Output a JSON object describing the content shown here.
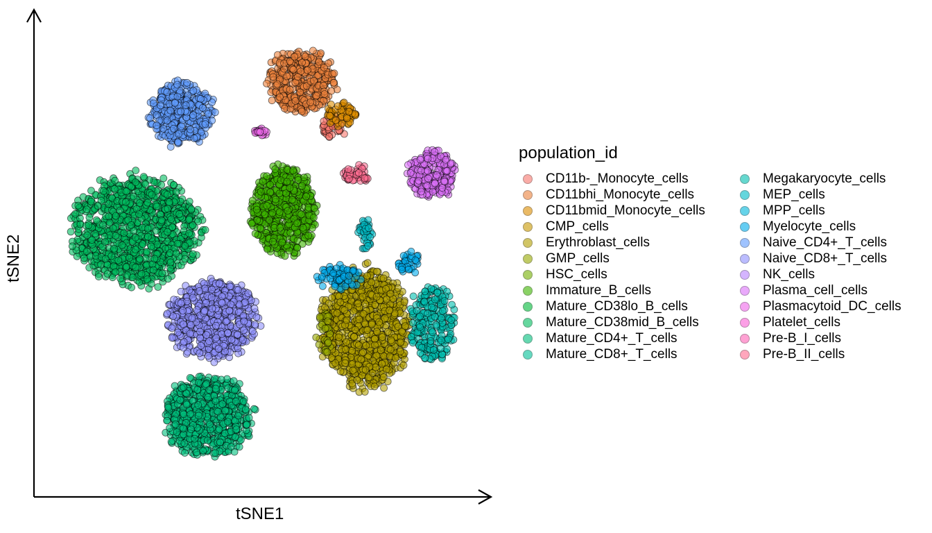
{
  "chart_data": {
    "type": "scatter",
    "xlabel": "tSNE1",
    "ylabel": "tSNE2",
    "xlim": [
      0,
      100
    ],
    "ylim": [
      0,
      100
    ],
    "legend_position": "right",
    "legend_title": "population_id",
    "grid": false,
    "series": [
      {
        "name": "CD11b-_Monocyte_cells",
        "color": "#F8766D"
      },
      {
        "name": "CD11bhi_Monocyte_cells",
        "color": "#EC823C"
      },
      {
        "name": "CD11bmid_Monocyte_cells",
        "color": "#DD8D00"
      },
      {
        "name": "CMP_cells",
        "color": "#C99800"
      },
      {
        "name": "Erythroblast_cells",
        "color": "#B3A000"
      },
      {
        "name": "GMP_cells",
        "color": "#97A900"
      },
      {
        "name": "HSC_cells",
        "color": "#74B000"
      },
      {
        "name": "Immature_B_cells",
        "color": "#3EB500"
      },
      {
        "name": "Mature_CD38lo_B_cells",
        "color": "#00BA38"
      },
      {
        "name": "Mature_CD38mid_B_cells",
        "color": "#00BD5F"
      },
      {
        "name": "Mature_CD4+_T_cells",
        "color": "#00BF7D"
      },
      {
        "name": "Mature_CD8+_T_cells",
        "color": "#00C097"
      },
      {
        "name": "Megakaryocyte_cells",
        "color": "#00BFB0"
      },
      {
        "name": "MEP_cells",
        "color": "#00BCC7"
      },
      {
        "name": "MPP_cells",
        "color": "#00B6DB"
      },
      {
        "name": "Myelocyte_cells",
        "color": "#00ACEC"
      },
      {
        "name": "Naive_CD4+_T_cells",
        "color": "#619CFF"
      },
      {
        "name": "Naive_CD8+_T_cells",
        "color": "#8F91FF"
      },
      {
        "name": "NK_cells",
        "color": "#B983FF"
      },
      {
        "name": "Plasma_cell_cells",
        "color": "#DC71FA"
      },
      {
        "name": "Plasmacytoid_DC_cells",
        "color": "#EF67EB"
      },
      {
        "name": "Platelet_cells",
        "color": "#FB61D7"
      },
      {
        "name": "Pre-B_I_cells",
        "color": "#FF63B6"
      },
      {
        "name": "Pre-B_II_cells",
        "color": "#FF6C91"
      }
    ],
    "clusters": [
      {
        "series": "CD11bhi_Monocyte_cells",
        "cx": 59,
        "cy": 87,
        "rx": 8.5,
        "ry": 7.5,
        "n": 420
      },
      {
        "series": "CD11b-_Monocyte_cells",
        "cx": 66,
        "cy": 77,
        "rx": 3.2,
        "ry": 2.6,
        "n": 40
      },
      {
        "series": "CD11bmid_Monocyte_cells",
        "cx": 68,
        "cy": 80,
        "rx": 4,
        "ry": 3,
        "n": 60
      },
      {
        "series": "Naive_CD4+_T_cells",
        "cx": 32,
        "cy": 80,
        "rx": 8,
        "ry": 7.5,
        "n": 380
      },
      {
        "series": "Mature_CD38mid_B_cells",
        "cx": 22,
        "cy": 55,
        "rx": 16,
        "ry": 13,
        "n": 1100
      },
      {
        "series": "Immature_B_cells",
        "cx": 55,
        "cy": 59,
        "rx": 8,
        "ry": 10.5,
        "n": 600
      },
      {
        "series": "Plasmacytoid_DC_cells",
        "cx": 50,
        "cy": 76,
        "rx": 2,
        "ry": 1,
        "n": 18
      },
      {
        "series": "Pre-B_II_cells",
        "cx": 71,
        "cy": 67,
        "rx": 3.2,
        "ry": 2.2,
        "n": 45
      },
      {
        "series": "Plasma_cell_cells",
        "cx": 88,
        "cy": 67,
        "rx": 6,
        "ry": 5.8,
        "n": 250
      },
      {
        "series": "Naive_CD8+_T_cells",
        "cx": 39,
        "cy": 36,
        "rx": 11,
        "ry": 9.5,
        "n": 700
      },
      {
        "series": "Mature_CD4+_T_cells",
        "cx": 38,
        "cy": 15,
        "rx": 11,
        "ry": 9.5,
        "n": 700
      },
      {
        "series": "Erythroblast_cells",
        "cx": 73,
        "cy": 34,
        "rx": 11,
        "ry": 14.5,
        "n": 1000
      },
      {
        "series": "Myelocyte_cells",
        "cx": 67,
        "cy": 45,
        "rx": 6,
        "ry": 3,
        "n": 70
      },
      {
        "series": "Myelocyte_cells",
        "cx": 83,
        "cy": 48,
        "rx": 3,
        "ry": 2.5,
        "n": 35
      },
      {
        "series": "Megakaryocyte_cells",
        "cx": 88,
        "cy": 35,
        "rx": 5.5,
        "ry": 9.5,
        "n": 230
      },
      {
        "series": "MEP_cells",
        "cx": 73,
        "cy": 54,
        "rx": 2,
        "ry": 4,
        "n": 35
      },
      {
        "series": "GMP_cells",
        "cx": 64,
        "cy": 33,
        "rx": 2,
        "ry": 5,
        "n": 30
      }
    ]
  }
}
